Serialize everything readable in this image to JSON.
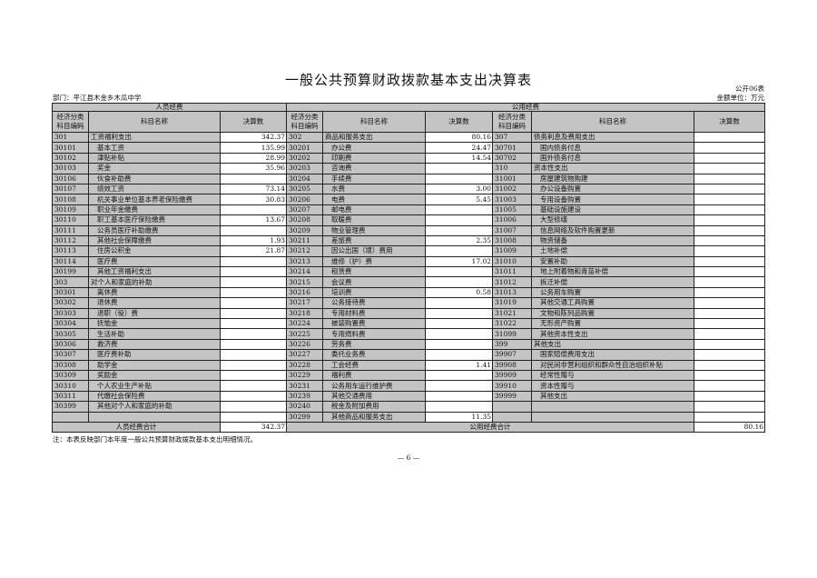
{
  "title": "一般公共预算财政拨款基本支出决算表",
  "form_no": "公开06表",
  "department": "部门：平江县木金乡木瓜中学",
  "unit": "金额单位：万元",
  "sections": {
    "personnel": "人员经费",
    "public": "公用经费"
  },
  "headers": {
    "code": "经济分类\n科目编码",
    "name": "科目名称",
    "amount": "决算数"
  },
  "rows": [
    [
      [
        "301",
        "工资福利支出",
        0,
        "342.37"
      ],
      [
        "302",
        "商品和服务支出",
        0,
        "80.16"
      ],
      [
        "307",
        "债务利息及费用支出",
        0,
        ""
      ]
    ],
    [
      [
        "30101",
        "基本工资",
        1,
        "135.99"
      ],
      [
        "30201",
        "办公费",
        1,
        "24.47"
      ],
      [
        "30701",
        "国内债务付息",
        1,
        ""
      ]
    ],
    [
      [
        "30102",
        "津贴补贴",
        1,
        "28.99"
      ],
      [
        "30202",
        "印刷费",
        1,
        "14.54"
      ],
      [
        "30702",
        "国外债务付息",
        1,
        ""
      ]
    ],
    [
      [
        "30103",
        "奖金",
        1,
        "35.96"
      ],
      [
        "30203",
        "咨询费",
        1,
        ""
      ],
      [
        "310",
        "资本性支出",
        0,
        ""
      ]
    ],
    [
      [
        "30106",
        "伙食补助费",
        1,
        ""
      ],
      [
        "30204",
        "手续费",
        1,
        ""
      ],
      [
        "31001",
        "房屋建筑物购建",
        1,
        ""
      ]
    ],
    [
      [
        "30107",
        "绩效工资",
        1,
        "73.14"
      ],
      [
        "30205",
        "水费",
        1,
        "3.00"
      ],
      [
        "31002",
        "办公设备购置",
        1,
        ""
      ]
    ],
    [
      [
        "30108",
        "机关事业单位基本养老保险缴费",
        1,
        "30.83"
      ],
      [
        "30206",
        "电费",
        1,
        "5.45"
      ],
      [
        "31003",
        "专用设备购置",
        1,
        ""
      ]
    ],
    [
      [
        "30109",
        "职业年金缴费",
        1,
        ""
      ],
      [
        "30207",
        "邮电费",
        1,
        ""
      ],
      [
        "31005",
        "基础设施建设",
        1,
        ""
      ]
    ],
    [
      [
        "30110",
        "职工基本医疗保险缴费",
        1,
        "13.67"
      ],
      [
        "30208",
        "取暖费",
        1,
        ""
      ],
      [
        "31006",
        "大型修缮",
        1,
        ""
      ]
    ],
    [
      [
        "30111",
        "公务员医疗补助缴费",
        1,
        ""
      ],
      [
        "30209",
        "物业管理费",
        1,
        ""
      ],
      [
        "31007",
        "信息网络及软件购置更新",
        1,
        ""
      ]
    ],
    [
      [
        "30112",
        "其他社会保障缴费",
        1,
        "1.93"
      ],
      [
        "30211",
        "差旅费",
        1,
        "2.35"
      ],
      [
        "31008",
        "物资储备",
        1,
        ""
      ]
    ],
    [
      [
        "30113",
        "住房公积金",
        1,
        "21.87"
      ],
      [
        "30212",
        "因公出国（境）费用",
        1,
        ""
      ],
      [
        "31009",
        "土地补偿",
        1,
        ""
      ]
    ],
    [
      [
        "30114",
        "医疗费",
        1,
        ""
      ],
      [
        "30213",
        "维修（护）费",
        1,
        "17.02"
      ],
      [
        "31010",
        "安置补助",
        1,
        ""
      ]
    ],
    [
      [
        "30199",
        "其他工资福利支出",
        1,
        ""
      ],
      [
        "30214",
        "租赁费",
        1,
        ""
      ],
      [
        "31011",
        "地上附着物和青苗补偿",
        1,
        ""
      ]
    ],
    [
      [
        "303",
        "对个人和家庭的补助",
        0,
        ""
      ],
      [
        "30215",
        "会议费",
        1,
        ""
      ],
      [
        "31012",
        "拆迁补偿",
        1,
        ""
      ]
    ],
    [
      [
        "30301",
        "离休费",
        1,
        ""
      ],
      [
        "30216",
        "培训费",
        1,
        "0.58"
      ],
      [
        "31013",
        "公务用车购置",
        1,
        ""
      ]
    ],
    [
      [
        "30302",
        "退休费",
        1,
        ""
      ],
      [
        "30217",
        "公务接待费",
        1,
        ""
      ],
      [
        "31019",
        "其他交通工具购置",
        1,
        ""
      ]
    ],
    [
      [
        "30303",
        "退职（役）费",
        1,
        ""
      ],
      [
        "30218",
        "专用材料费",
        1,
        ""
      ],
      [
        "31021",
        "文物和陈列品购置",
        1,
        ""
      ]
    ],
    [
      [
        "30304",
        "抚恤金",
        1,
        ""
      ],
      [
        "30224",
        "被装购置费",
        1,
        ""
      ],
      [
        "31022",
        "无形资产购置",
        1,
        ""
      ]
    ],
    [
      [
        "30305",
        "生活补助",
        1,
        ""
      ],
      [
        "30225",
        "专用燃料费",
        1,
        ""
      ],
      [
        "31099",
        "其他资本性支出",
        1,
        ""
      ]
    ],
    [
      [
        "30306",
        "救济费",
        1,
        ""
      ],
      [
        "30226",
        "劳务费",
        1,
        ""
      ],
      [
        "399",
        "其他支出",
        0,
        ""
      ]
    ],
    [
      [
        "30307",
        "医疗费补助",
        1,
        ""
      ],
      [
        "30227",
        "委托业务费",
        1,
        ""
      ],
      [
        "39907",
        "国家赔偿费用支出",
        1,
        ""
      ]
    ],
    [
      [
        "30308",
        "助学金",
        1,
        ""
      ],
      [
        "30228",
        "工会经费",
        1,
        "1.41"
      ],
      [
        "39908",
        "对民间非营利组织和群众性自治组织补贴",
        1,
        ""
      ]
    ],
    [
      [
        "30309",
        "奖励金",
        1,
        ""
      ],
      [
        "30229",
        "福利费",
        1,
        ""
      ],
      [
        "39909",
        "经常性赠与",
        1,
        ""
      ]
    ],
    [
      [
        "30310",
        "个人农业生产补贴",
        1,
        ""
      ],
      [
        "30231",
        "公务用车运行维护费",
        1,
        ""
      ],
      [
        "39910",
        "资本性赠与",
        1,
        ""
      ]
    ],
    [
      [
        "30311",
        "代缴社会保险费",
        1,
        ""
      ],
      [
        "30239",
        "其他交通费用",
        1,
        ""
      ],
      [
        "39999",
        "其他支出",
        1,
        ""
      ]
    ],
    [
      [
        "30399",
        "其他对个人和家庭的补助",
        1,
        ""
      ],
      [
        "30240",
        "税金及附加费用",
        1,
        ""
      ],
      [
        "",
        "",
        0,
        ""
      ]
    ],
    [
      [
        "",
        "",
        0,
        ""
      ],
      [
        "30299",
        "其他商品和服务支出",
        1,
        "11.35"
      ],
      [
        "",
        "",
        0,
        ""
      ]
    ]
  ],
  "totals": {
    "personnel_label": "人员经费合计",
    "personnel_value": "342.37",
    "public_label": "公用经费合计",
    "public_value": "80.16"
  },
  "note": "注：本表反映部门本年度一般公共预算财政拨款基本支出明细情况。",
  "page_number": "— 6 —"
}
